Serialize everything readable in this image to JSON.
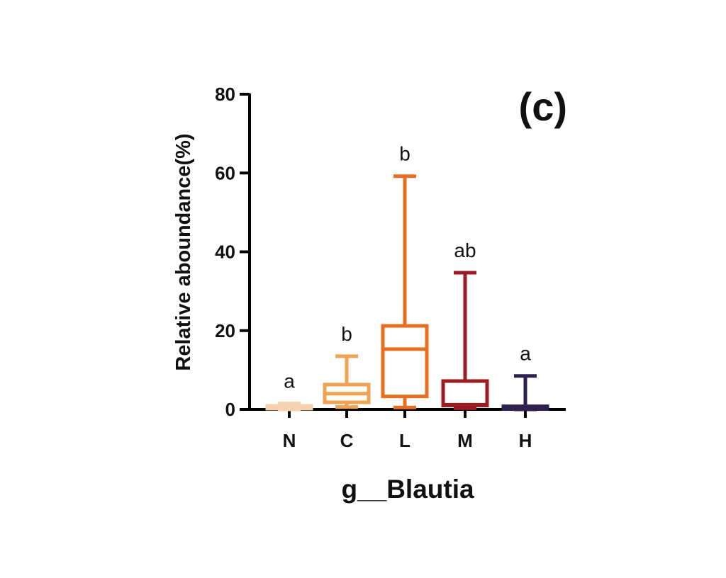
{
  "chart_data": {
    "type": "box",
    "panel_label": "(c)",
    "ylabel": "Relative aboundance(%)",
    "xlabel": "g__Blautia",
    "ylim": [
      0,
      80
    ],
    "yticks": [
      "0",
      "20",
      "40",
      "60",
      "80"
    ],
    "grid": false,
    "categories": [
      "N",
      "C",
      "L",
      "M",
      "H"
    ],
    "boxes": [
      {
        "category": "N",
        "min": 0.0,
        "q1": 0.2,
        "median": 0.5,
        "q3": 0.9,
        "max": 1.5,
        "color": "#F5D3B0",
        "sig": "a"
      },
      {
        "category": "C",
        "min": 0.6,
        "q1": 1.8,
        "median": 4.0,
        "q3": 6.3,
        "max": 13.5,
        "color": "#EFA352",
        "sig": "b"
      },
      {
        "category": "L",
        "min": 0.5,
        "q1": 3.3,
        "median": 15.3,
        "q3": 21.2,
        "max": 59.2,
        "color": "#E86F22",
        "sig": "b"
      },
      {
        "category": "M",
        "min": 0.3,
        "q1": 1.0,
        "median": 1.2,
        "q3": 7.2,
        "max": 34.7,
        "color": "#9B1B23",
        "sig": "ab"
      },
      {
        "category": "H",
        "min": 0.0,
        "q1": 0.1,
        "median": 0.5,
        "q3": 0.8,
        "max": 8.5,
        "color": "#2E2150",
        "sig": "a"
      }
    ]
  }
}
